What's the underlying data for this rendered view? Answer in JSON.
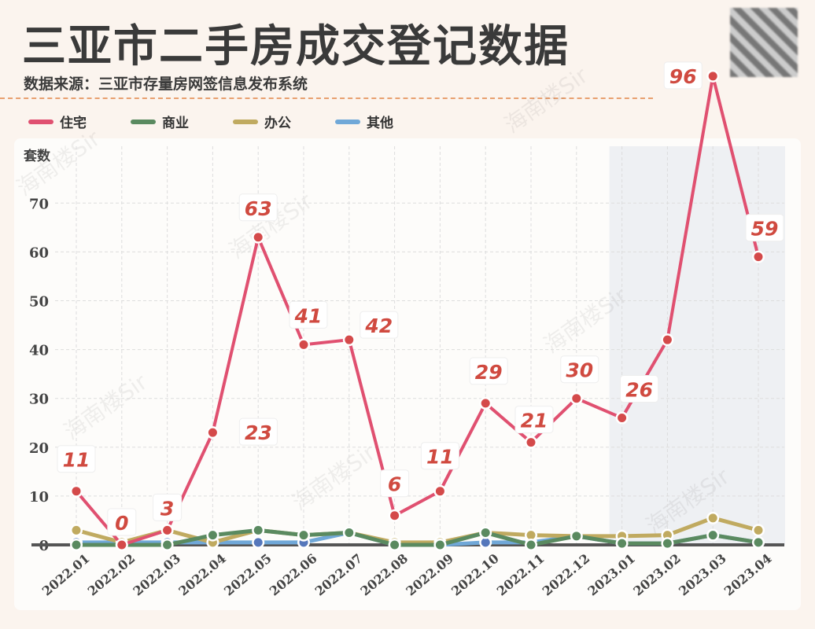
{
  "header": {
    "title": "三亚市二手房成交登记数据",
    "source": "数据来源：三亚市存量房网签信息发布系统"
  },
  "watermark": "海南楼Sir",
  "chart_data": {
    "type": "line",
    "ylabel": "套数",
    "ylim": [
      0,
      75
    ],
    "yticks": [
      0,
      10,
      20,
      30,
      40,
      50,
      60,
      70
    ],
    "grid": true,
    "legend_position": "top-left",
    "highlight_range": [
      "2023.01",
      "2023.04"
    ],
    "categories": [
      "2022.01",
      "2022.02",
      "2022.03",
      "2022.04",
      "2022.05",
      "2022.06",
      "2022.07",
      "2022.08",
      "2022.09",
      "2022.10",
      "2022.11",
      "2022.12",
      "2023.01",
      "2023.02",
      "2023.03",
      "2023.04"
    ],
    "series": [
      {
        "name": "住宅",
        "color": "#e05070",
        "values": [
          11,
          0,
          3,
          23,
          63,
          41,
          42,
          6,
          11,
          29,
          21,
          30,
          26,
          42,
          96,
          59
        ],
        "labels": [
          11,
          0,
          3,
          23,
          63,
          41,
          42,
          6,
          11,
          29,
          21,
          30,
          26,
          null,
          96,
          59
        ]
      },
      {
        "name": "商业",
        "color": "#5a8a60",
        "values": [
          0,
          0,
          0,
          2,
          3,
          2,
          2.5,
          0,
          0,
          2.5,
          0,
          1.8,
          0.3,
          0.3,
          2,
          0.5
        ]
      },
      {
        "name": "办公",
        "color": "#c0aa60",
        "values": [
          3,
          0.5,
          3,
          0.5,
          3,
          2,
          2.5,
          0.5,
          0.5,
          2.5,
          2,
          1.8,
          1.8,
          2,
          5.5,
          3
        ]
      },
      {
        "name": "其他",
        "color": "#70a8d8",
        "values": [
          0.5,
          0.5,
          0.5,
          0.5,
          0.5,
          0.5,
          2.5,
          0,
          0,
          0.5,
          0.5,
          1.8,
          0.3,
          0.3,
          2,
          0.5
        ]
      }
    ]
  }
}
